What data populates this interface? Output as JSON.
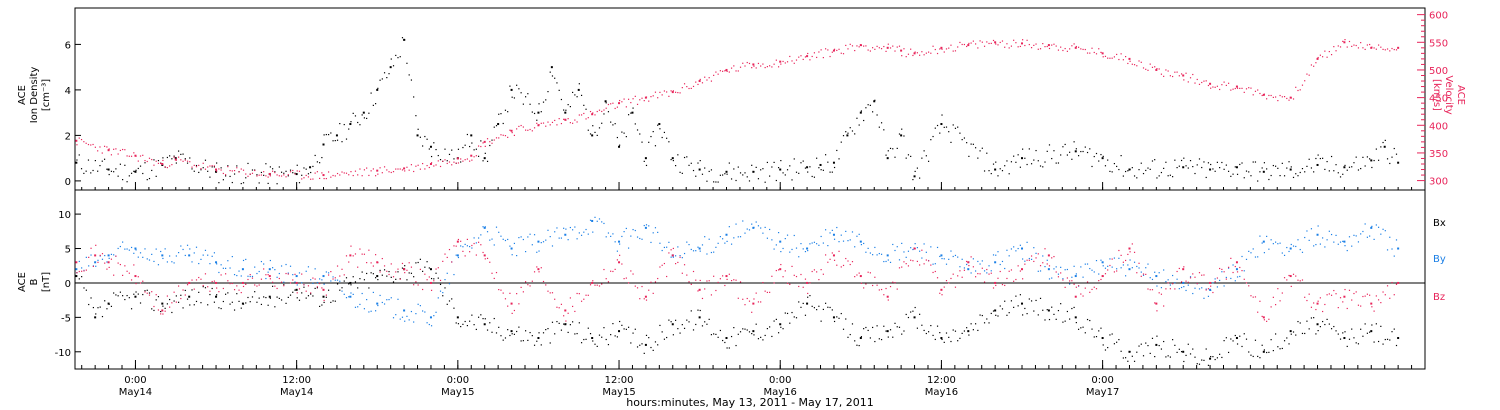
{
  "chart_data": [
    {
      "type": "scatter",
      "panel": "top",
      "ylabel_left": [
        "ACE",
        "Ion Density",
        "[cm⁻³]"
      ],
      "ylabel_right": [
        "ACE",
        "Velocity",
        "[km/s]"
      ],
      "xlim_hours": [
        -4.5,
        96
      ],
      "ylim_left": [
        -0.4,
        7.6
      ],
      "ylim_right": [
        283,
        612
      ],
      "yticks_left": [
        0,
        2,
        4,
        6
      ],
      "yticks_right": [
        300,
        350,
        400,
        450,
        500,
        550,
        600
      ],
      "series": [
        {
          "key": "density",
          "color": "#000000",
          "axis": "left",
          "x": [
            -4.4,
            -2,
            0,
            2,
            3,
            6,
            10,
            12,
            13,
            14,
            15,
            16,
            17,
            18,
            19,
            20,
            21,
            22,
            24,
            25,
            26,
            27,
            28,
            30,
            31,
            32,
            33,
            34,
            35,
            36,
            37,
            38,
            39,
            40,
            42,
            44,
            46,
            48,
            50,
            51,
            52,
            53,
            54,
            55,
            56,
            57,
            58,
            60,
            64,
            66,
            70,
            72,
            74,
            78,
            80,
            82,
            84,
            86,
            88,
            90,
            92,
            93,
            94
          ],
          "y": [
            0.8,
            0.5,
            0.4,
            0.7,
            1.0,
            0.4,
            0.3,
            0.3,
            0.6,
            1.6,
            2.0,
            2.5,
            3.0,
            4.0,
            5.0,
            6.2,
            2.0,
            1.5,
            1.0,
            2.0,
            1.0,
            2.5,
            4.0,
            3.0,
            5.0,
            3.0,
            4.0,
            2.0,
            3.5,
            1.5,
            3.0,
            1.0,
            2.5,
            1.0,
            0.5,
            0.4,
            0.4,
            0.5,
            0.6,
            0.7,
            0.8,
            2.0,
            3.0,
            3.5,
            1.0,
            2.0,
            0.2,
            2.5,
            0.5,
            1.0,
            1.3,
            1.0,
            0.5,
            0.6,
            0.5,
            0.6,
            0.4,
            0.5,
            0.7,
            0.6,
            0.9,
            1.5,
            0.8
          ]
        },
        {
          "key": "velocity",
          "color": "#e8245a",
          "axis": "right",
          "x": [
            -4.4,
            -2,
            0,
            2,
            3,
            6,
            10,
            14,
            18,
            20,
            22,
            24,
            25,
            26,
            28,
            30,
            32,
            34,
            36,
            38,
            40,
            42,
            44,
            46,
            48,
            50,
            52,
            54,
            56,
            57,
            58,
            60,
            62,
            64,
            66,
            68,
            70,
            72,
            74,
            76,
            78,
            80,
            82,
            84,
            86,
            88,
            90,
            92,
            94
          ],
          "y": [
            372,
            355,
            345,
            330,
            338,
            320,
            312,
            310,
            318,
            322,
            330,
            340,
            345,
            370,
            390,
            400,
            410,
            420,
            440,
            450,
            460,
            480,
            500,
            510,
            515,
            525,
            535,
            545,
            540,
            535,
            530,
            540,
            545,
            550,
            548,
            545,
            540,
            530,
            520,
            500,
            490,
            475,
            470,
            455,
            450,
            520,
            550,
            540,
            540
          ]
        }
      ]
    },
    {
      "type": "scatter",
      "panel": "bottom",
      "ylabel_left": [
        "ACE",
        "B",
        "[nT]"
      ],
      "xlim_hours": [
        -4.5,
        96
      ],
      "ylim": [
        -12.5,
        13.5
      ],
      "yticks": [
        -10,
        -5,
        0,
        5,
        10
      ],
      "zero_line": true,
      "legend": {
        "position": "right",
        "entries": [
          "Bx",
          "By",
          "Bz"
        ]
      },
      "series": [
        {
          "key": "bx",
          "name": "Bx",
          "color": "#000000",
          "x": [
            -4.4,
            -3,
            -2,
            0,
            2,
            4,
            6,
            8,
            10,
            12,
            14,
            16,
            18,
            20,
            22,
            24,
            26,
            28,
            30,
            32,
            34,
            36,
            38,
            40,
            42,
            44,
            46,
            48,
            50,
            52,
            54,
            56,
            58,
            60,
            62,
            64,
            66,
            68,
            70,
            72,
            74,
            76,
            78,
            80,
            82,
            84,
            86,
            88,
            90,
            92,
            94
          ],
          "y": [
            1,
            -5,
            -3,
            -2,
            -3,
            -2,
            -2,
            -3,
            -2,
            -1,
            -2,
            0,
            1,
            2,
            2,
            -5,
            -6,
            -7,
            -8,
            -6,
            -8,
            -7,
            -9,
            -6,
            -5,
            -8,
            -7,
            -6,
            -3,
            -5,
            -8,
            -7,
            -5,
            -8,
            -7,
            -4,
            -3,
            -4,
            -5,
            -8,
            -10,
            -9,
            -10,
            -11,
            -8,
            -10,
            -7,
            -6,
            -8,
            -7,
            -8
          ]
        },
        {
          "key": "by",
          "name": "By",
          "color": "#1a7fe6",
          "x": [
            -4.4,
            -3,
            -2,
            0,
            2,
            4,
            6,
            8,
            10,
            12,
            14,
            16,
            18,
            20,
            22,
            24,
            26,
            28,
            30,
            32,
            34,
            36,
            38,
            40,
            42,
            44,
            46,
            48,
            50,
            52,
            54,
            56,
            58,
            60,
            62,
            64,
            66,
            68,
            70,
            72,
            74,
            76,
            78,
            80,
            82,
            84,
            86,
            88,
            90,
            92,
            94
          ],
          "y": [
            2,
            3,
            4,
            5,
            4,
            4,
            3,
            2,
            2,
            1,
            1,
            -2,
            -3,
            -4,
            -5,
            4,
            8,
            5,
            6,
            7,
            9,
            6,
            8,
            4,
            5,
            7,
            8,
            6,
            5,
            7,
            6,
            4,
            5,
            4,
            2,
            3,
            5,
            2,
            1,
            3,
            2,
            1,
            0,
            -1,
            2,
            6,
            5,
            7,
            6,
            8,
            5
          ]
        },
        {
          "key": "bz",
          "name": "Bz",
          "color": "#e8245a",
          "x": [
            -4.4,
            -3,
            -2,
            0,
            2,
            4,
            6,
            8,
            10,
            12,
            14,
            16,
            18,
            20,
            22,
            24,
            26,
            28,
            30,
            32,
            34,
            36,
            38,
            40,
            42,
            44,
            46,
            48,
            50,
            52,
            54,
            56,
            58,
            60,
            62,
            64,
            66,
            68,
            70,
            72,
            74,
            76,
            78,
            80,
            82,
            84,
            86,
            88,
            90,
            92,
            94
          ],
          "y": [
            3,
            4,
            3,
            1,
            -4,
            0,
            0,
            0,
            1,
            0,
            -1,
            4,
            3,
            2,
            0,
            6,
            4,
            -3,
            2,
            -4,
            0,
            3,
            -2,
            4,
            -1,
            1,
            -3,
            2,
            0,
            4,
            1,
            -2,
            5,
            -1,
            3,
            0,
            2,
            4,
            -2,
            1,
            5,
            -3,
            2,
            0,
            3,
            -5,
            1,
            -3,
            -2,
            -3,
            0
          ]
        }
      ]
    }
  ],
  "axes": {
    "x_ticks": [
      {
        "time": "0:00",
        "date": "May14",
        "hours": 0
      },
      {
        "time": "12:00",
        "date": "May14",
        "hours": 12
      },
      {
        "time": "0:00",
        "date": "May15",
        "hours": 24
      },
      {
        "time": "12:00",
        "date": "May15",
        "hours": 36
      },
      {
        "time": "0:00",
        "date": "May16",
        "hours": 48
      },
      {
        "time": "12:00",
        "date": "May16",
        "hours": 60
      },
      {
        "time": "0:00",
        "date": "May17",
        "hours": 72
      }
    ],
    "x_minor_step_hours": 1,
    "xlabel": "hours:minutes, May 13, 2011 - May 17, 2011"
  },
  "colors": {
    "density": "#000000",
    "velocity": "#e8245a",
    "bx": "#000000",
    "by": "#1a7fe6",
    "bz": "#e8245a",
    "axis": "#000000"
  }
}
